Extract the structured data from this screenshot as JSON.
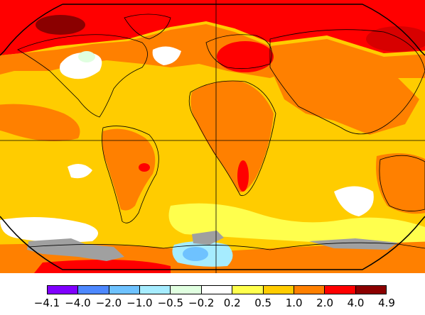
{
  "map": {
    "projection": "Robinson",
    "background": "#ffffff",
    "equator_line": true,
    "prime_meridian_line": true,
    "missing_data_color": "#a0a0a0"
  },
  "legend": {
    "colors": [
      "#8000ff",
      "#4d88ff",
      "#6ec2ff",
      "#a6ecff",
      "#e0ffe0",
      "#ffffff",
      "#ffff4d",
      "#ffcc00",
      "#ff8000",
      "#ff0000",
      "#8b0000"
    ],
    "tick_labels": [
      "−4.1",
      "−4.0",
      "−2.0",
      "−1.0",
      "−0.5",
      "−0.2",
      "0.2",
      "0.5",
      "1.0",
      "2.0",
      "4.0",
      "4.9"
    ]
  }
}
